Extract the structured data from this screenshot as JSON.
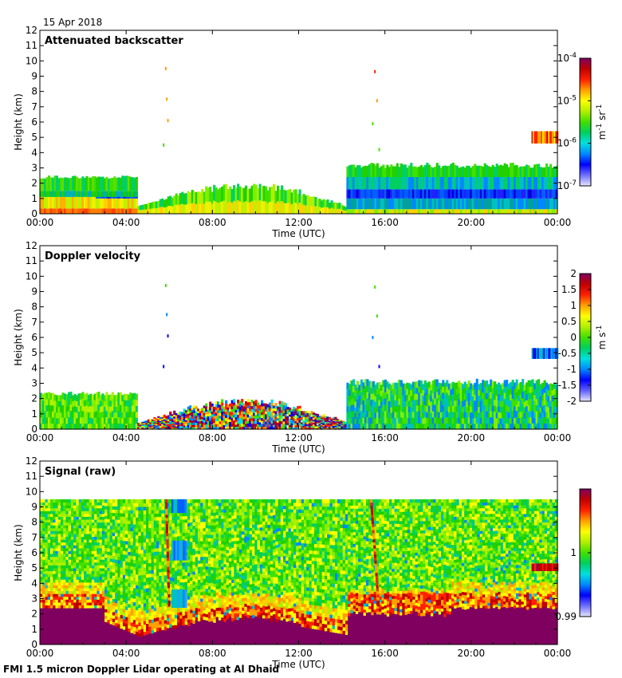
{
  "date": "15 Apr 2018",
  "footer": "FMI 1.5 micron Doppler Lidar operating at Al Dhaid",
  "chart_data": [
    {
      "type": "heatmap",
      "title": "Attenuated backscatter",
      "xlabel": "Time (UTC)",
      "ylabel": "Height (km)",
      "x_ticks": [
        "00:00",
        "04:00",
        "08:00",
        "12:00",
        "16:00",
        "20:00",
        "00:00"
      ],
      "xlim_hours": [
        0,
        24
      ],
      "ylim": [
        0,
        12
      ],
      "y_ticks": [
        "0",
        "1",
        "2",
        "3",
        "4",
        "5",
        "6",
        "7",
        "8",
        "9",
        "10",
        "11",
        "12"
      ],
      "colorbar": {
        "unit_base": "m",
        "unit_exp1": "-1",
        "unit_mid": " sr",
        "unit_exp2": "-1",
        "scale": "log",
        "range": [
          1e-07,
          0.0001
        ],
        "tick_base": "10",
        "ticks": [
          "-7",
          "-6",
          "-5",
          "-4"
        ],
        "colors": [
          "#e6e6ff",
          "#7070ff",
          "#0000ff",
          "#0088ff",
          "#00e0e0",
          "#00d060",
          "#40e000",
          "#b0f000",
          "#ffff00",
          "#ffa000",
          "#ff2000",
          "#c00000",
          "#800060"
        ]
      },
      "layers": [
        {
          "t": [
            0,
            4.3
          ],
          "top": 2.4,
          "value": "green"
        },
        {
          "t": [
            0,
            4.5
          ],
          "top": 1.2,
          "value": "yellow"
        },
        {
          "t": [
            0,
            4.5
          ],
          "top": 0.4,
          "value": "orange"
        },
        {
          "t": [
            4.5,
            14.2
          ],
          "top": 2.0,
          "value": "green-yellow"
        },
        {
          "t": [
            14.2,
            24
          ],
          "top": 3.3,
          "value": "green"
        },
        {
          "t": [
            14.2,
            24
          ],
          "top": 1.2,
          "value": "blue"
        },
        {
          "t": [
            22.8,
            24
          ],
          "top": 5.3,
          "value": "yellow-red"
        }
      ]
    },
    {
      "type": "heatmap",
      "title": "Doppler velocity",
      "xlabel": "Time (UTC)",
      "ylabel": "Height (km)",
      "x_ticks": [
        "00:00",
        "04:00",
        "08:00",
        "12:00",
        "16:00",
        "20:00",
        "00:00"
      ],
      "xlim_hours": [
        0,
        24
      ],
      "ylim": [
        0,
        12
      ],
      "y_ticks": [
        "0",
        "1",
        "2",
        "3",
        "4",
        "5",
        "6",
        "7",
        "8",
        "9",
        "10",
        "11",
        "12"
      ],
      "colorbar": {
        "unit_base": "m s",
        "unit_exp": "-1",
        "range": [
          -2,
          2
        ],
        "ticks": [
          "-2",
          "-1.5",
          "-1",
          "-0.5",
          "0",
          "0.5",
          "1",
          "1.5",
          "2"
        ],
        "colors": [
          "#e6e6ff",
          "#6060ff",
          "#0000ff",
          "#0088ff",
          "#00e0e0",
          "#00d060",
          "#40e000",
          "#b0f000",
          "#ffff00",
          "#ffa000",
          "#ff2000",
          "#c00000",
          "#800060"
        ]
      },
      "layers": [
        {
          "t": [
            0,
            4.5
          ],
          "top": 2.4,
          "value": "green"
        },
        {
          "t": [
            4.5,
            14.2
          ],
          "top": 2.0,
          "value": "mixed turbulent"
        },
        {
          "t": [
            14.2,
            24
          ],
          "top": 3.3,
          "value": "green-blue"
        },
        {
          "t": [
            22.8,
            24
          ],
          "top": 5.2,
          "value": "blue"
        }
      ]
    },
    {
      "type": "heatmap",
      "title": "Signal (raw)",
      "xlabel": "Time (UTC)",
      "ylabel": "Height (km)",
      "x_ticks": [
        "00:00",
        "04:00",
        "08:00",
        "12:00",
        "16:00",
        "20:00",
        "00:00"
      ],
      "xlim_hours": [
        0,
        24
      ],
      "ylim": [
        0,
        12
      ],
      "y_ticks": [
        "0",
        "1",
        "2",
        "3",
        "4",
        "5",
        "6",
        "7",
        "8",
        "9",
        "10",
        "11",
        "12"
      ],
      "colorbar": {
        "range": [
          0.99,
          1.01
        ],
        "ticks": [
          "0.99",
          "1"
        ],
        "colors": [
          "#e6e6ff",
          "#7070ff",
          "#0000ff",
          "#0088ff",
          "#00e0e0",
          "#00d060",
          "#40e000",
          "#b0f000",
          "#ffff00",
          "#ffa000",
          "#ff2000",
          "#c00000",
          "#800060"
        ]
      },
      "layers": [
        {
          "t": [
            0,
            24
          ],
          "top": 9.5,
          "value": "green noise"
        },
        {
          "t": [
            0,
            24
          ],
          "top": 2.4,
          "value": "purple (strong)"
        },
        {
          "t": [
            14.2,
            24
          ],
          "top": 3.3,
          "value": "red"
        }
      ]
    }
  ]
}
